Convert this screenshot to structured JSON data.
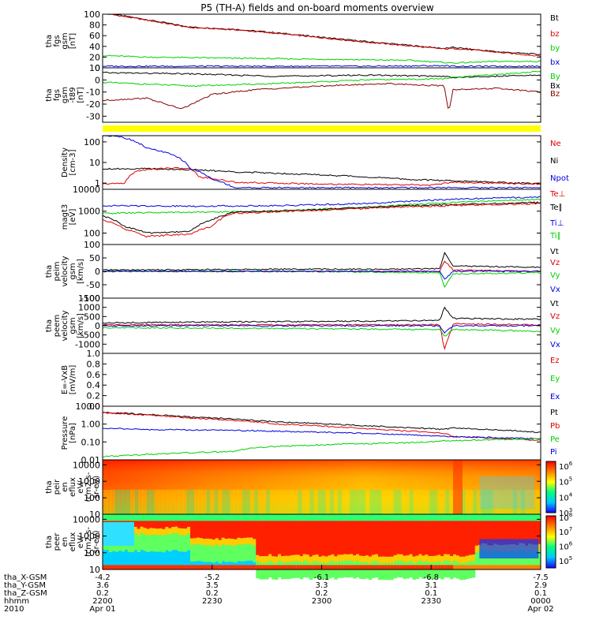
{
  "title": "P5 (TH-A) fields and on-board moments overview",
  "colors": {
    "black": "#000000",
    "red": "#e00000",
    "green": "#00d000",
    "blue": "#0000e0",
    "yellow": "#ffff00",
    "maroon": "#8b0000"
  },
  "panels": [
    {
      "id": "fgs-dsl",
      "ylabel": [
        "tha",
        "fgs",
        "gsm",
        "[nT]"
      ],
      "yrange": [
        0,
        100
      ],
      "yticks": [
        0,
        20,
        40,
        60,
        80,
        100
      ],
      "legend": [
        {
          "label": "Bt",
          "color": "#000000"
        },
        {
          "label": "bz",
          "color": "#e00000"
        },
        {
          "label": "by",
          "color": "#00d000"
        },
        {
          "label": "bx",
          "color": "#0000e0"
        }
      ],
      "series": [
        {
          "color": "#000000",
          "x": [
            0,
            0.1,
            0.2,
            0.3,
            0.4,
            0.5,
            0.6,
            0.7,
            0.78,
            0.8,
            0.85,
            0.9,
            1.0
          ],
          "y": [
            103,
            90,
            76,
            72,
            65,
            57,
            49,
            42,
            36,
            38,
            34,
            30,
            25
          ]
        },
        {
          "color": "#e00000",
          "x": [
            0,
            0.1,
            0.2,
            0.3,
            0.4,
            0.5,
            0.6,
            0.7,
            0.78,
            0.8,
            0.85,
            0.9,
            1.0
          ],
          "y": [
            102,
            89,
            75,
            71,
            64,
            56,
            48,
            41,
            35,
            36,
            33,
            29,
            22
          ]
        },
        {
          "color": "#00d000",
          "x": [
            0,
            0.1,
            0.3,
            0.5,
            0.7,
            0.8,
            0.9,
            1.0
          ],
          "y": [
            23,
            20,
            18,
            16,
            14,
            9,
            12,
            12
          ]
        },
        {
          "color": "#0000e0",
          "x": [
            0,
            0.3,
            0.6,
            0.78,
            0.8,
            1.0
          ],
          "y": [
            3,
            3,
            3,
            4,
            3,
            3
          ]
        }
      ]
    },
    {
      "id": "fgs-gse",
      "ylabel": [
        "tha",
        "fgs",
        "gsm",
        "-t89",
        "[nT]"
      ],
      "yrange": [
        -35,
        10
      ],
      "yticks": [
        -30,
        -20,
        -10,
        0,
        10
      ],
      "legend": [
        {
          "label": "By",
          "color": "#00d000"
        },
        {
          "label": "Bx",
          "color": "#000000"
        },
        {
          "label": "Bz",
          "color": "#8b0000"
        }
      ],
      "series": [
        {
          "color": "#000000",
          "x": [
            0,
            0.2,
            0.4,
            0.6,
            0.78,
            0.8,
            1.0
          ],
          "y": [
            6,
            5,
            3,
            4,
            3,
            2,
            4
          ]
        },
        {
          "color": "#00d000",
          "x": [
            0,
            0.2,
            0.4,
            0.6,
            0.78,
            0.8,
            1.0
          ],
          "y": [
            -2,
            -5,
            -3,
            0,
            1,
            2,
            7
          ]
        },
        {
          "color": "#8b0000",
          "x": [
            0,
            0.1,
            0.18,
            0.25,
            0.35,
            0.5,
            0.65,
            0.78,
            0.79,
            0.8,
            0.9,
            1.0
          ],
          "y": [
            -17,
            -15,
            -24,
            -12,
            -8,
            -5,
            -3,
            -5,
            -27,
            -8,
            -7,
            -10
          ]
        }
      ]
    },
    {
      "id": "density",
      "ylabel": [
        "Density",
        "[cm-3]"
      ],
      "log": true,
      "yrange": [
        0.5,
        200
      ],
      "yticks": [
        1,
        10,
        100
      ],
      "yticklabels": [
        "1",
        "10",
        "100"
      ],
      "legend": [
        {
          "label": "Ne",
          "color": "#e00000"
        },
        {
          "label": "Ni",
          "color": "#000000"
        },
        {
          "label": "Npot",
          "color": "#0000e0"
        },
        {
          "label": "Te⊥",
          "color": "#e00000"
        }
      ],
      "series": [
        {
          "color": "#000000",
          "x": [
            0,
            0.1,
            0.2,
            0.3,
            0.5,
            0.7,
            0.8,
            1.0
          ],
          "y": [
            5,
            5,
            4.5,
            3.5,
            2.5,
            1.5,
            1.3,
            0.9
          ]
        },
        {
          "color": "#e00000",
          "x": [
            0,
            0.05,
            0.08,
            0.15,
            0.2,
            0.22,
            0.3,
            0.5,
            0.75,
            0.8,
            1.0
          ],
          "y": [
            0.9,
            1,
            4,
            5.5,
            5,
            2,
            1.1,
            0.9,
            0.8,
            1.1,
            0.9
          ]
        },
        {
          "color": "#0000e0",
          "x": [
            0.03,
            0.1,
            0.2,
            0.25,
            0.3,
            0.5,
            1.0
          ],
          "y": [
            200,
            50,
            5,
            1.5,
            0.6,
            0.6,
            0.6
          ]
        }
      ]
    },
    {
      "id": "temperature",
      "ylabel": [
        "magt3",
        "[eV]"
      ],
      "log": true,
      "yrange": [
        30,
        10000
      ],
      "yticks": [
        100,
        1000,
        10000
      ],
      "yticklabels": [
        "100",
        "1000",
        "10000"
      ],
      "legend": [
        {
          "label": "Te∥",
          "color": "#000000"
        },
        {
          "label": "Ti⊥",
          "color": "#0000e0"
        },
        {
          "label": "Ti∥",
          "color": "#00d000"
        }
      ],
      "series": [
        {
          "color": "#0000e0",
          "x": [
            0,
            0.2,
            0.4,
            0.6,
            0.8,
            1.0
          ],
          "y": [
            1800,
            1700,
            1800,
            2200,
            3500,
            4500
          ]
        },
        {
          "color": "#00d000",
          "x": [
            0,
            0.2,
            0.4,
            0.6,
            0.8,
            1.0
          ],
          "y": [
            800,
            900,
            1000,
            1500,
            2500,
            3500
          ]
        },
        {
          "color": "#000000",
          "x": [
            0,
            0.05,
            0.1,
            0.2,
            0.25,
            0.3,
            0.5,
            0.7,
            0.8,
            1.0
          ],
          "y": [
            600,
            200,
            100,
            120,
            400,
            900,
            1200,
            1800,
            2000,
            2500
          ]
        },
        {
          "color": "#e00000",
          "x": [
            0,
            0.05,
            0.1,
            0.2,
            0.25,
            0.3,
            0.5,
            0.7,
            0.8,
            1.0
          ],
          "y": [
            400,
            150,
            70,
            90,
            200,
            800,
            1100,
            1600,
            1800,
            2200
          ]
        }
      ]
    },
    {
      "id": "peim-velocity",
      "ylabel": [
        "tha",
        "peim",
        "velocity",
        "gsm",
        "[km/s]"
      ],
      "yrange": [
        -100,
        100
      ],
      "yticks": [
        -100,
        -50,
        0,
        50,
        100
      ],
      "legend": [
        {
          "label": "Vt",
          "color": "#000000"
        },
        {
          "label": "Vz",
          "color": "#e00000"
        },
        {
          "label": "Vy",
          "color": "#00d000"
        },
        {
          "label": "Vx",
          "color": "#0000e0"
        }
      ],
      "series": [
        {
          "color": "#000000",
          "x": [
            0,
            0.2,
            0.4,
            0.6,
            0.77,
            0.78,
            0.8,
            1.0
          ],
          "y": [
            5,
            6,
            8,
            8,
            10,
            70,
            20,
            15
          ]
        },
        {
          "color": "#e00000",
          "x": [
            0,
            0.4,
            0.77,
            0.78,
            0.8,
            1.0
          ],
          "y": [
            0,
            0,
            0,
            40,
            5,
            0
          ]
        },
        {
          "color": "#00d000",
          "x": [
            0,
            0.4,
            0.77,
            0.78,
            0.8,
            1.0
          ],
          "y": [
            0,
            0,
            -5,
            -60,
            -10,
            -5
          ]
        },
        {
          "color": "#0000e0",
          "x": [
            0,
            0.4,
            0.77,
            0.78,
            0.8,
            1.0
          ],
          "y": [
            0,
            0,
            0,
            -30,
            0,
            0
          ]
        }
      ]
    },
    {
      "id": "peem-velocity",
      "ylabel": [
        "tha",
        "peem",
        "velocity",
        "gsm",
        "[km/s]"
      ],
      "yrange": [
        -1500,
        1500
      ],
      "yticks": [
        -1000,
        -500,
        0,
        500,
        1000,
        1500
      ],
      "legend": [
        {
          "label": "Vt",
          "color": "#000000"
        },
        {
          "label": "Vz",
          "color": "#e00000"
        },
        {
          "label": "Vy",
          "color": "#00d000"
        },
        {
          "label": "Vx",
          "color": "#0000e0"
        }
      ],
      "series": [
        {
          "color": "#000000",
          "x": [
            0,
            0.2,
            0.4,
            0.6,
            0.77,
            0.78,
            0.8,
            1.0
          ],
          "y": [
            150,
            200,
            220,
            250,
            300,
            1000,
            400,
            350
          ]
        },
        {
          "color": "#e00000",
          "x": [
            0,
            0.4,
            0.77,
            0.78,
            0.8,
            1.0
          ],
          "y": [
            50,
            50,
            50,
            -1300,
            100,
            50
          ]
        },
        {
          "color": "#00d000",
          "x": [
            0,
            0.4,
            0.77,
            0.78,
            0.8,
            1.0
          ],
          "y": [
            -100,
            -150,
            -200,
            -600,
            -200,
            -300
          ]
        },
        {
          "color": "#0000e0",
          "x": [
            0,
            0.4,
            0.77,
            0.78,
            0.8,
            1.0
          ],
          "y": [
            0,
            0,
            0,
            -400,
            0,
            0
          ]
        }
      ]
    },
    {
      "id": "efield",
      "ylabel": [
        "E=-VxB",
        "[mV/m]"
      ],
      "yrange": [
        0,
        1
      ],
      "yticks": [
        0,
        0.2,
        0.4,
        0.6,
        0.8,
        1.0
      ],
      "yticklabels": [
        "0.0",
        "0.2",
        "0.4",
        "0.6",
        "0.8",
        "1.0"
      ],
      "legend": [
        {
          "label": "Ez",
          "color": "#e00000"
        },
        {
          "label": "Ey",
          "color": "#00d000"
        },
        {
          "label": "Ex",
          "color": "#0000e0"
        }
      ],
      "series": []
    },
    {
      "id": "pressure",
      "ylabel": [
        "Pressure",
        "[nPa]"
      ],
      "log": true,
      "yrange": [
        0.01,
        10
      ],
      "yticks": [
        0.01,
        0.1,
        1,
        10
      ],
      "yticklabels": [
        "0.01",
        "0.10",
        "1.00",
        "10.00"
      ],
      "legend": [
        {
          "label": "Pt",
          "color": "#000000"
        },
        {
          "label": "Pb",
          "color": "#e00000"
        },
        {
          "label": "Pe",
          "color": "#00d000"
        },
        {
          "label": "Pi",
          "color": "#0000e0"
        }
      ],
      "series": [
        {
          "color": "#000000",
          "x": [
            0,
            0.2,
            0.4,
            0.6,
            0.78,
            0.8,
            1.0
          ],
          "y": [
            4.5,
            2.5,
            1.3,
            0.8,
            0.5,
            0.6,
            0.35
          ]
        },
        {
          "color": "#e00000",
          "x": [
            0,
            0.2,
            0.4,
            0.6,
            0.78,
            0.8,
            1.0
          ],
          "y": [
            4.2,
            2.2,
            1.0,
            0.55,
            0.3,
            0.2,
            0.12
          ]
        },
        {
          "color": "#0000e0",
          "x": [
            0,
            0.1,
            0.3,
            0.5,
            0.7,
            0.8,
            1.0
          ],
          "y": [
            0.6,
            0.5,
            0.45,
            0.35,
            0.25,
            0.2,
            0.15
          ]
        },
        {
          "color": "#00d000",
          "x": [
            0,
            0.1,
            0.2,
            0.3,
            0.35,
            0.5,
            0.7,
            0.8,
            1.0
          ],
          "y": [
            0.015,
            0.02,
            0.025,
            0.03,
            0.05,
            0.07,
            0.09,
            0.12,
            0.15
          ]
        }
      ]
    },
    {
      "id": "peir-spectrogram",
      "type": "heatmap",
      "ylabel": [
        "tha",
        "peir",
        "en",
        "eflux",
        "eV/",
        "(cm2-s-",
        "sr-eV)"
      ],
      "log": true,
      "yrange": [
        10,
        20000
      ],
      "yticks": [
        10,
        100,
        1000,
        10000
      ],
      "yticklabels": [
        "10",
        "100",
        "1000",
        "10000"
      ],
      "colorbar": {
        "labels": [
          "10^3",
          "10^4",
          "10^5",
          "10^6"
        ],
        "range": [
          3,
          6.3
        ]
      }
    },
    {
      "id": "peer-spectrogram",
      "type": "heatmap",
      "ylabel": [
        "tha",
        "peer",
        "en",
        "eflux",
        "eV/",
        "(cm2-s-",
        "sr-eV)"
      ],
      "log": true,
      "yrange": [
        10,
        20000
      ],
      "yticks": [
        10,
        100,
        1000,
        10000
      ],
      "yticklabels": [
        "10",
        "100",
        "1000",
        "10000"
      ],
      "colorbar": {
        "labels": [
          "10^5",
          "10^6",
          "10^7",
          "10^8"
        ],
        "range": [
          4.5,
          8.1
        ]
      }
    }
  ],
  "x_axis": {
    "ticks": [
      0,
      0.25,
      0.5,
      0.75,
      1.0
    ],
    "rows": [
      {
        "label": "tha_X-GSM",
        "values": [
          "-4.2",
          "-5.2",
          "-6.1",
          "-6.8",
          "-7.5"
        ]
      },
      {
        "label": "tha_Y-GSM",
        "values": [
          "3.6",
          "3.5",
          "3.3",
          "3.1",
          "2.9"
        ]
      },
      {
        "label": "tha_Z-GSM",
        "values": [
          "0.2",
          "0.2",
          "0.2",
          "0.1",
          "0.1"
        ]
      },
      {
        "label": "hhmm",
        "values": [
          "2200",
          "2230",
          "2300",
          "2330",
          "0000"
        ]
      },
      {
        "label": "2010",
        "values": [
          "Apr 01",
          "",
          "",
          "",
          "Apr 02"
        ]
      }
    ]
  }
}
